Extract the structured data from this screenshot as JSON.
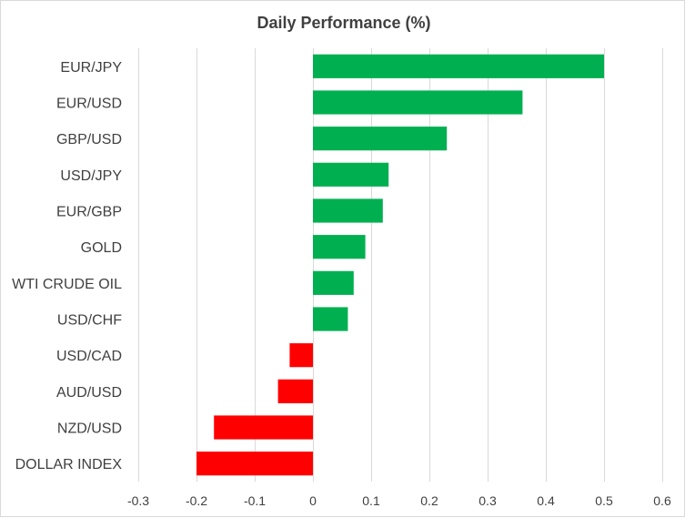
{
  "chart_data": {
    "type": "bar",
    "orientation": "horizontal",
    "title": "Daily Performance  (%)",
    "xlabel": "",
    "ylabel": "",
    "categories": [
      "EUR/JPY",
      "EUR/USD",
      "GBP/USD",
      "USD/JPY",
      "EUR/GBP",
      "GOLD",
      "WTI CRUDE OIL",
      "USD/CHF",
      "USD/CAD",
      "AUD/USD",
      "NZD/USD",
      "DOLLAR INDEX"
    ],
    "values": [
      0.5,
      0.36,
      0.23,
      0.13,
      0.12,
      0.09,
      0.07,
      0.06,
      -0.04,
      -0.06,
      -0.17,
      -0.2
    ],
    "xlim": [
      -0.3,
      0.6
    ],
    "xticks": [
      "-0.3",
      "-0.2",
      "-0.1",
      "0",
      "0.1",
      "0.2",
      "0.3",
      "0.4",
      "0.5",
      "0.6"
    ],
    "grid": "vertical",
    "legend": "none",
    "colors": {
      "positive": "#00b050",
      "negative": "#ff0000",
      "text": "#404040",
      "grid": "#d9d9d9"
    }
  }
}
